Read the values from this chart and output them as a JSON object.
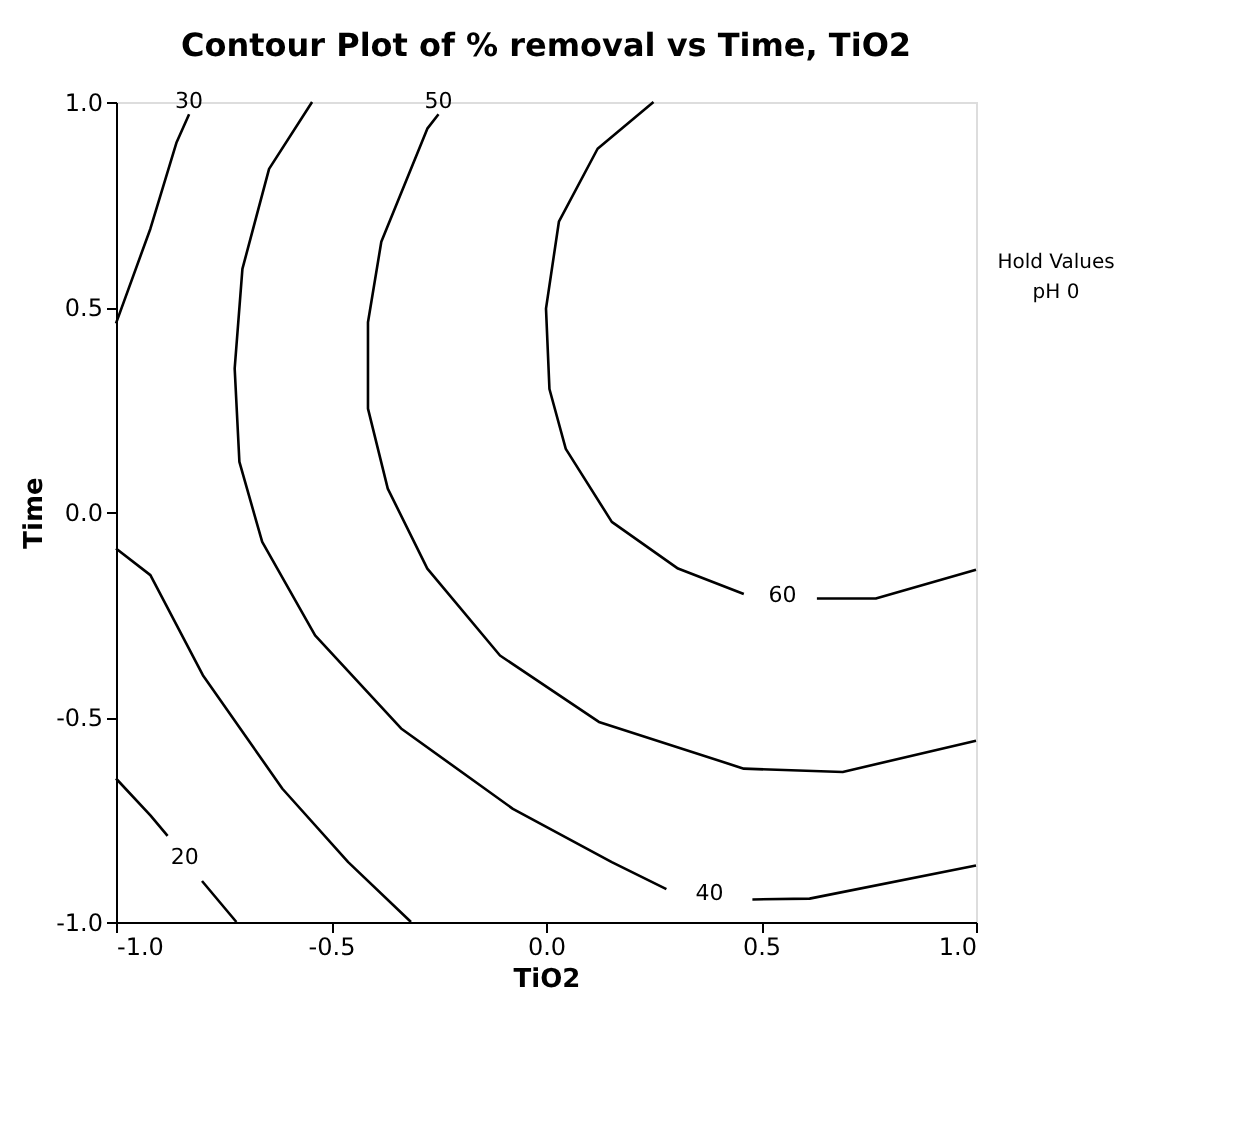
{
  "chart_data": {
    "type": "line",
    "title": "Contour Plot of % removal vs Time, TiO2",
    "xlabel": "TiO2",
    "ylabel": "Time",
    "xlim": [
      -1,
      1
    ],
    "ylim": [
      -1,
      1
    ],
    "xticks": [
      {
        "value": -1,
        "label": "-1.0"
      },
      {
        "value": -0.5,
        "label": "-0.5"
      },
      {
        "value": 0,
        "label": "0.0"
      },
      {
        "value": 0.5,
        "label": "0.5"
      },
      {
        "value": 1,
        "label": "1.0"
      }
    ],
    "yticks": [
      {
        "value": -1,
        "label": "-1.0"
      },
      {
        "value": -0.5,
        "label": "-0.5"
      },
      {
        "value": 0,
        "label": "0.0"
      },
      {
        "value": 0.5,
        "label": "0.5"
      },
      {
        "value": 1,
        "label": "1.0"
      }
    ],
    "grid": false,
    "series": [
      {
        "name": "60",
        "color": "#000000",
        "x": [
          0.25,
          0.12,
          0.03,
          0.0,
          0.008,
          0.046,
          0.153,
          0.307,
          0.46,
          0.55,
          0.63,
          0.767,
          1.0
        ],
        "values": [
          1.0,
          0.886,
          0.708,
          0.496,
          0.3,
          0.154,
          -0.024,
          -0.138,
          -0.2,
          null,
          -0.211,
          -0.211,
          -0.141
        ]
      },
      {
        "name": "50",
        "color": "#000000",
        "x": [
          -0.25,
          -0.276,
          -0.383,
          -0.414,
          -0.414,
          -0.368,
          -0.276,
          -0.107,
          0.123,
          0.46,
          0.69,
          1.0
        ],
        "values": [
          0.97,
          0.935,
          0.659,
          0.463,
          0.252,
          0.057,
          -0.138,
          -0.35,
          -0.512,
          -0.626,
          -0.634,
          -0.558
        ]
      },
      {
        "name": "40",
        "color": "#000000",
        "x": [
          -0.544,
          -0.644,
          -0.706,
          -0.724,
          -0.713,
          -0.66,
          -0.537,
          -0.337,
          -0.077,
          0.153,
          0.28,
          0.38,
          0.48,
          0.613,
          1.0
        ],
        "values": [
          1.0,
          0.837,
          0.593,
          0.35,
          0.122,
          -0.073,
          -0.301,
          -0.528,
          -0.724,
          -0.854,
          -0.92,
          null,
          -0.945,
          -0.943,
          -0.862
        ]
      },
      {
        "name": "30",
        "color": "#000000",
        "x": [
          -0.83,
          -0.859,
          -0.92,
          -1.0
        ],
        "values": [
          0.97,
          0.902,
          0.691,
          0.46
        ]
      },
      {
        "color": "#000000",
        "x": [
          -1.0,
          -0.92,
          -0.798,
          -0.613,
          -0.46,
          -0.314
        ],
        "values": [
          -0.089,
          -0.154,
          -0.398,
          -0.675,
          -0.854,
          -1.0
        ]
      },
      {
        "name": "20",
        "color": "#000000",
        "x": [
          -1.0,
          -0.92,
          -0.88,
          -0.84,
          -0.8,
          -0.72
        ],
        "values": [
          -0.65,
          -0.74,
          -0.79,
          null,
          -0.9,
          -1.0
        ]
      }
    ],
    "annotations": [
      "Hold Values",
      "pH  0"
    ]
  }
}
